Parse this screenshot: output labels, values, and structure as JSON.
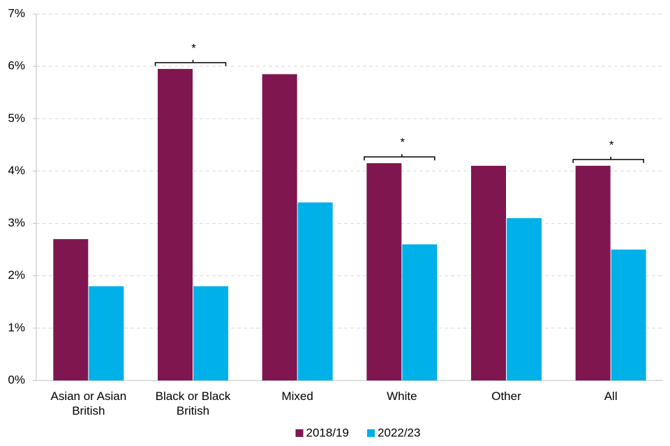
{
  "chart_data": {
    "type": "bar",
    "categories": [
      "Asian or Asian British",
      "Black or Black British",
      "Mixed",
      "White",
      "Other",
      "All"
    ],
    "series": [
      {
        "name": "2018/19",
        "color": "#801650",
        "values": [
          2.7,
          5.95,
          5.85,
          4.15,
          4.1,
          4.1
        ]
      },
      {
        "name": "2022/23",
        "color": "#00b0e8",
        "values": [
          1.8,
          1.8,
          3.4,
          2.6,
          3.1,
          2.5
        ]
      }
    ],
    "ylim": [
      0,
      7
    ],
    "yticks": [
      {
        "value": 0,
        "label": "0%"
      },
      {
        "value": 1,
        "label": "1%"
      },
      {
        "value": 2,
        "label": "2%"
      },
      {
        "value": 3,
        "label": "3%"
      },
      {
        "value": 4,
        "label": "4%"
      },
      {
        "value": 5,
        "label": "5%"
      },
      {
        "value": 6,
        "label": "6%"
      },
      {
        "value": 7,
        "label": "7%"
      }
    ],
    "grid": true,
    "legend": "bottom",
    "annotations": [
      {
        "text": "*",
        "category": "Black or Black British"
      },
      {
        "text": "*",
        "category": "White"
      },
      {
        "text": "*",
        "category": "All"
      }
    ]
  }
}
